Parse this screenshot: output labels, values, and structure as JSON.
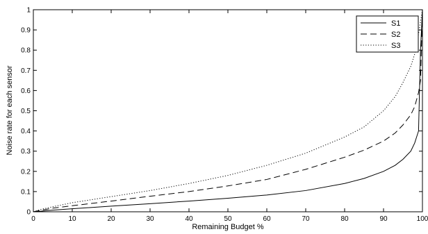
{
  "chart_data": {
    "type": "line",
    "title": "",
    "xlabel": "Remaining Budget %",
    "ylabel": "Noise rate for each sensor",
    "xlim": [
      0,
      100
    ],
    "ylim": [
      0,
      1
    ],
    "xticks": [
      "0",
      "10",
      "20",
      "30",
      "40",
      "50",
      "60",
      "70",
      "80",
      "90",
      "100"
    ],
    "yticks": [
      "0",
      "0.1",
      "0.2",
      "0.3",
      "0.4",
      "0.5",
      "0.6",
      "0.7",
      "0.8",
      "0.9",
      "1"
    ],
    "grid": false,
    "legend_position": "top-right",
    "x": [
      0,
      2,
      5,
      10,
      20,
      30,
      40,
      50,
      60,
      70,
      80,
      85,
      90,
      93,
      95,
      97,
      98,
      99,
      99.5,
      100
    ],
    "series": [
      {
        "name": "S1",
        "style": "solid",
        "values": [
          0,
          0.003,
          0.008,
          0.015,
          0.028,
          0.04,
          0.053,
          0.067,
          0.083,
          0.105,
          0.14,
          0.165,
          0.2,
          0.23,
          0.26,
          0.3,
          0.34,
          0.4,
          0.8,
          1.0
        ]
      },
      {
        "name": "S2",
        "style": "dashed",
        "values": [
          0,
          0.008,
          0.018,
          0.03,
          0.053,
          0.077,
          0.1,
          0.128,
          0.16,
          0.21,
          0.27,
          0.305,
          0.35,
          0.39,
          0.43,
          0.48,
          0.52,
          0.59,
          0.65,
          1.0
        ]
      },
      {
        "name": "S3",
        "style": "dotted",
        "values": [
          0,
          0.012,
          0.025,
          0.045,
          0.075,
          0.105,
          0.14,
          0.18,
          0.23,
          0.29,
          0.37,
          0.42,
          0.5,
          0.57,
          0.64,
          0.72,
          0.78,
          0.88,
          0.94,
          1.0
        ]
      }
    ]
  }
}
